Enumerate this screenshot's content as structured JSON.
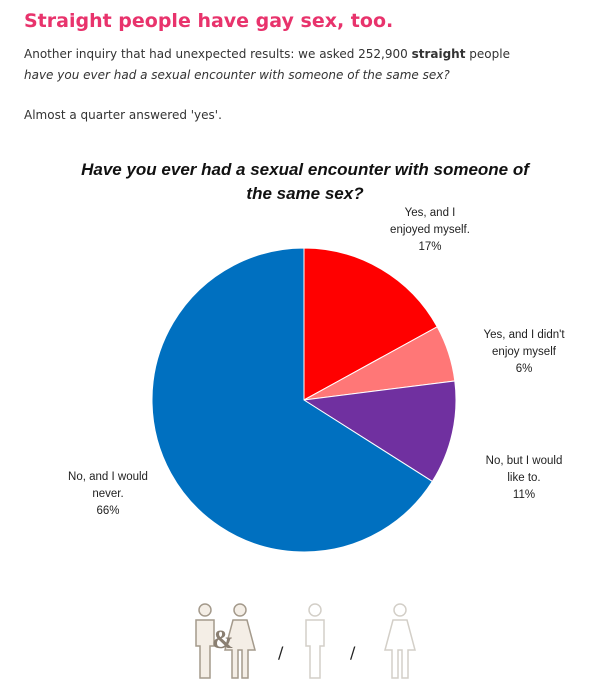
{
  "article": {
    "headline": "Straight people have gay sex, too.",
    "intro_prefix": "Another inquiry that had unexpected results: we asked 252,900 ",
    "intro_bold": "straight",
    "intro_suffix": " people",
    "intro_question": "have you ever had a sexual encounter with someone of the same sex?",
    "summary": "Almost a quarter answered 'yes'."
  },
  "chart_data": {
    "type": "pie",
    "title": "Have you ever had a sexual encounter with someone of the same sex?",
    "slices": [
      {
        "label_lines": [
          "Yes, and I",
          "enjoyed myself."
        ],
        "value": 17,
        "value_label": "17%",
        "color": "#ff0000"
      },
      {
        "label_lines": [
          "Yes, and I didn't",
          "enjoy myself"
        ],
        "value": 6,
        "value_label": "6%",
        "color": "#ff7777"
      },
      {
        "label_lines": [
          "No, but I would",
          "like to."
        ],
        "value": 11,
        "value_label": "11%",
        "color": "#7030a0"
      },
      {
        "label_lines": [
          "No, and I would",
          "never."
        ],
        "value": 66,
        "value_label": "66%",
        "color": "#0070c0"
      }
    ],
    "start_angle": "12 o'clock",
    "direction": "clockwise",
    "legend": "none"
  },
  "footer_icons": {
    "couple_separator": "&",
    "separator": "/",
    "icons": [
      "man-woman-couple-icon",
      "man-icon",
      "woman-icon"
    ]
  }
}
